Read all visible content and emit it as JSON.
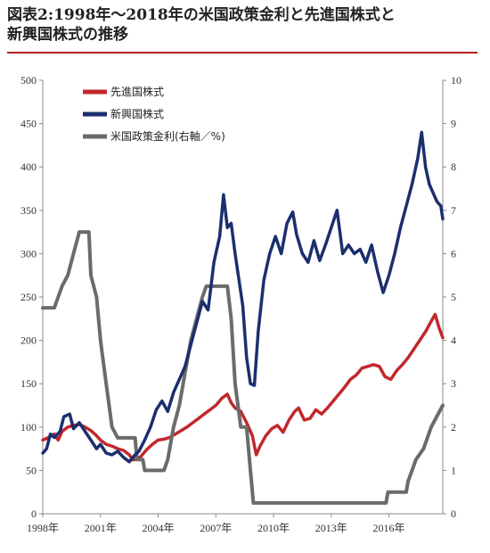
{
  "title": {
    "line1": "図表2:1998年～2018年の米国政策金利と先進国株式と",
    "line2": "新興国株式の推移"
  },
  "chart_data": {
    "type": "line",
    "x_tick_labels": [
      "1998年",
      "2001年",
      "2004年",
      "2007年",
      "2010年",
      "2013年",
      "2016年"
    ],
    "x_ticks": [
      1998,
      2001,
      2004,
      2007,
      2010,
      2013,
      2016
    ],
    "xlim": [
      1998,
      2018.8
    ],
    "y_left": {
      "lim": [
        0,
        500
      ],
      "ticks": [
        0,
        50,
        100,
        150,
        200,
        250,
        300,
        350,
        400,
        450,
        500
      ]
    },
    "y_right": {
      "lim": [
        0,
        10
      ],
      "ticks": [
        0,
        1,
        2,
        3,
        4,
        5,
        6,
        7,
        8,
        9,
        10
      ]
    },
    "grid": false,
    "legend_position": "top-left",
    "series": [
      {
        "name": "先進国株式",
        "axis": "left",
        "color": "#c0282c",
        "points": [
          [
            1998.0,
            85
          ],
          [
            1998.3,
            88
          ],
          [
            1998.6,
            92
          ],
          [
            1998.8,
            85
          ],
          [
            1999.0,
            95
          ],
          [
            1999.3,
            100
          ],
          [
            1999.6,
            102
          ],
          [
            1999.9,
            103
          ],
          [
            2000.2,
            100
          ],
          [
            2000.5,
            96
          ],
          [
            2000.8,
            90
          ],
          [
            2001.0,
            85
          ],
          [
            2001.3,
            80
          ],
          [
            2001.6,
            78
          ],
          [
            2001.9,
            75
          ],
          [
            2002.2,
            73
          ],
          [
            2002.5,
            68
          ],
          [
            2002.7,
            62
          ],
          [
            2002.9,
            63
          ],
          [
            2003.1,
            66
          ],
          [
            2003.4,
            74
          ],
          [
            2003.7,
            80
          ],
          [
            2004.0,
            85
          ],
          [
            2004.3,
            86
          ],
          [
            2004.6,
            88
          ],
          [
            2004.9,
            92
          ],
          [
            2005.2,
            96
          ],
          [
            2005.5,
            100
          ],
          [
            2005.8,
            105
          ],
          [
            2006.1,
            110
          ],
          [
            2006.4,
            115
          ],
          [
            2006.7,
            120
          ],
          [
            2007.0,
            125
          ],
          [
            2007.3,
            133
          ],
          [
            2007.6,
            138
          ],
          [
            2007.8,
            128
          ],
          [
            2008.0,
            122
          ],
          [
            2008.3,
            118
          ],
          [
            2008.6,
            105
          ],
          [
            2008.9,
            90
          ],
          [
            2009.1,
            68
          ],
          [
            2009.3,
            78
          ],
          [
            2009.6,
            90
          ],
          [
            2009.9,
            98
          ],
          [
            2010.2,
            102
          ],
          [
            2010.5,
            94
          ],
          [
            2010.8,
            108
          ],
          [
            2011.1,
            118
          ],
          [
            2011.3,
            122
          ],
          [
            2011.6,
            108
          ],
          [
            2011.9,
            110
          ],
          [
            2012.2,
            120
          ],
          [
            2012.5,
            115
          ],
          [
            2012.8,
            122
          ],
          [
            2013.1,
            130
          ],
          [
            2013.4,
            138
          ],
          [
            2013.7,
            146
          ],
          [
            2014.0,
            155
          ],
          [
            2014.3,
            160
          ],
          [
            2014.6,
            168
          ],
          [
            2014.9,
            170
          ],
          [
            2015.2,
            172
          ],
          [
            2015.5,
            170
          ],
          [
            2015.8,
            158
          ],
          [
            2016.1,
            155
          ],
          [
            2016.4,
            165
          ],
          [
            2016.7,
            172
          ],
          [
            2017.0,
            180
          ],
          [
            2017.3,
            190
          ],
          [
            2017.6,
            200
          ],
          [
            2017.9,
            210
          ],
          [
            2018.2,
            222
          ],
          [
            2018.4,
            230
          ],
          [
            2018.6,
            215
          ],
          [
            2018.8,
            203
          ]
        ]
      },
      {
        "name": "新興国株式",
        "axis": "left",
        "color": "#1b2f6e",
        "points": [
          [
            1998.0,
            70
          ],
          [
            1998.2,
            75
          ],
          [
            1998.4,
            92
          ],
          [
            1998.6,
            88
          ],
          [
            1998.9,
            95
          ],
          [
            1999.1,
            112
          ],
          [
            1999.4,
            115
          ],
          [
            1999.6,
            98
          ],
          [
            1999.9,
            105
          ],
          [
            2000.2,
            95
          ],
          [
            2000.5,
            85
          ],
          [
            2000.8,
            75
          ],
          [
            2001.0,
            80
          ],
          [
            2001.3,
            70
          ],
          [
            2001.6,
            68
          ],
          [
            2001.9,
            72
          ],
          [
            2002.2,
            65
          ],
          [
            2002.5,
            60
          ],
          [
            2002.8,
            68
          ],
          [
            2003.0,
            72
          ],
          [
            2003.3,
            85
          ],
          [
            2003.6,
            100
          ],
          [
            2003.9,
            120
          ],
          [
            2004.2,
            130
          ],
          [
            2004.5,
            118
          ],
          [
            2004.8,
            140
          ],
          [
            2005.1,
            155
          ],
          [
            2005.4,
            170
          ],
          [
            2005.7,
            195
          ],
          [
            2006.0,
            220
          ],
          [
            2006.3,
            245
          ],
          [
            2006.6,
            235
          ],
          [
            2006.9,
            290
          ],
          [
            2007.2,
            320
          ],
          [
            2007.4,
            368
          ],
          [
            2007.6,
            330
          ],
          [
            2007.8,
            335
          ],
          [
            2008.0,
            300
          ],
          [
            2008.2,
            270
          ],
          [
            2008.4,
            240
          ],
          [
            2008.6,
            180
          ],
          [
            2008.8,
            150
          ],
          [
            2009.0,
            148
          ],
          [
            2009.2,
            210
          ],
          [
            2009.5,
            270
          ],
          [
            2009.8,
            300
          ],
          [
            2010.1,
            320
          ],
          [
            2010.4,
            300
          ],
          [
            2010.7,
            335
          ],
          [
            2011.0,
            348
          ],
          [
            2011.2,
            322
          ],
          [
            2011.5,
            300
          ],
          [
            2011.8,
            290
          ],
          [
            2012.1,
            315
          ],
          [
            2012.4,
            292
          ],
          [
            2012.7,
            310
          ],
          [
            2013.0,
            330
          ],
          [
            2013.3,
            350
          ],
          [
            2013.6,
            300
          ],
          [
            2013.9,
            310
          ],
          [
            2014.2,
            300
          ],
          [
            2014.5,
            305
          ],
          [
            2014.8,
            290
          ],
          [
            2015.1,
            310
          ],
          [
            2015.4,
            280
          ],
          [
            2015.7,
            255
          ],
          [
            2016.0,
            275
          ],
          [
            2016.3,
            300
          ],
          [
            2016.6,
            330
          ],
          [
            2016.9,
            355
          ],
          [
            2017.2,
            380
          ],
          [
            2017.5,
            410
          ],
          [
            2017.7,
            440
          ],
          [
            2017.9,
            400
          ],
          [
            2018.1,
            380
          ],
          [
            2018.3,
            370
          ],
          [
            2018.5,
            360
          ],
          [
            2018.7,
            355
          ],
          [
            2018.8,
            340
          ]
        ]
      },
      {
        "name": "米国政策金利(右軸／%)",
        "axis": "right",
        "color": "#6b6b6b",
        "points": [
          [
            1998.0,
            4.75
          ],
          [
            1998.6,
            4.75
          ],
          [
            1998.8,
            5.0
          ],
          [
            1999.0,
            5.25
          ],
          [
            1999.3,
            5.5
          ],
          [
            1999.6,
            6.0
          ],
          [
            1999.9,
            6.5
          ],
          [
            2000.4,
            6.5
          ],
          [
            2000.5,
            5.5
          ],
          [
            2000.8,
            5.0
          ],
          [
            2001.0,
            4.0
          ],
          [
            2001.3,
            3.0
          ],
          [
            2001.6,
            2.0
          ],
          [
            2001.9,
            1.75
          ],
          [
            2002.8,
            1.75
          ],
          [
            2002.9,
            1.25
          ],
          [
            2003.2,
            1.25
          ],
          [
            2003.3,
            1.0
          ],
          [
            2004.3,
            1.0
          ],
          [
            2004.5,
            1.25
          ],
          [
            2004.8,
            2.0
          ],
          [
            2005.1,
            2.5
          ],
          [
            2005.4,
            3.25
          ],
          [
            2005.7,
            4.0
          ],
          [
            2006.0,
            4.5
          ],
          [
            2006.3,
            5.0
          ],
          [
            2006.5,
            5.25
          ],
          [
            2007.6,
            5.25
          ],
          [
            2007.8,
            4.5
          ],
          [
            2008.0,
            3.0
          ],
          [
            2008.3,
            2.0
          ],
          [
            2008.6,
            2.0
          ],
          [
            2008.8,
            1.0
          ],
          [
            2008.95,
            0.25
          ],
          [
            2015.85,
            0.25
          ],
          [
            2015.95,
            0.5
          ],
          [
            2016.9,
            0.5
          ],
          [
            2017.0,
            0.75
          ],
          [
            2017.2,
            1.0
          ],
          [
            2017.4,
            1.25
          ],
          [
            2017.8,
            1.5
          ],
          [
            2018.0,
            1.75
          ],
          [
            2018.2,
            2.0
          ],
          [
            2018.5,
            2.25
          ],
          [
            2018.8,
            2.5
          ]
        ]
      }
    ]
  }
}
